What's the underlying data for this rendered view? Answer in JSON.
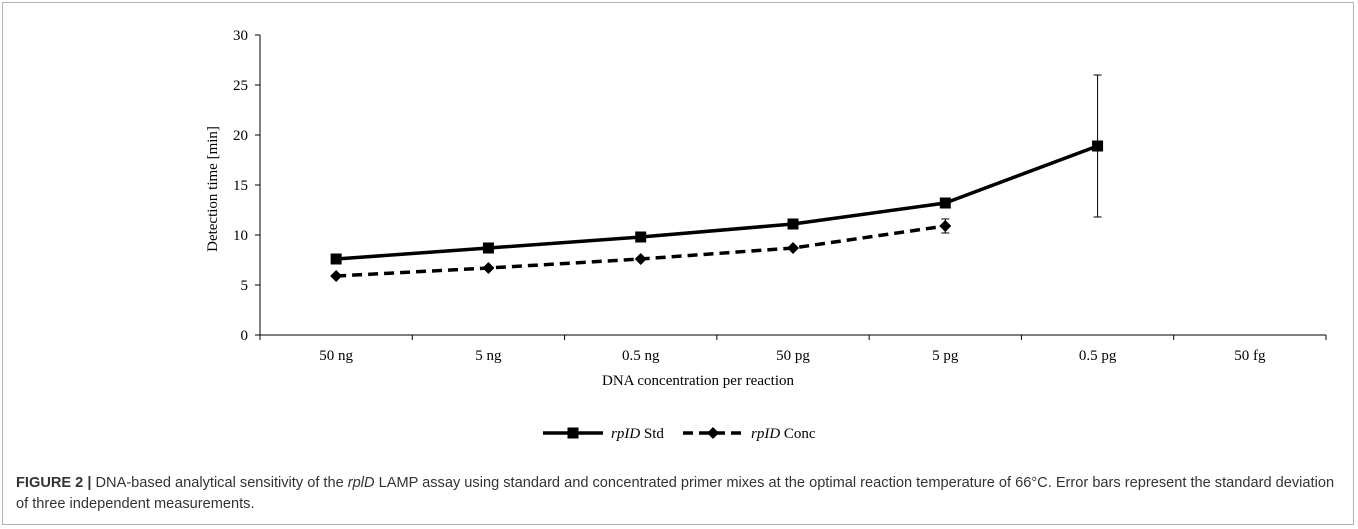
{
  "chart_data": {
    "type": "line",
    "xlabel": "DNA concentration per reaction",
    "ylabel": "Detection time [min]",
    "ylim": [
      0,
      30
    ],
    "yticks": [
      0,
      5,
      10,
      15,
      20,
      25,
      30
    ],
    "categories": [
      "50 ng",
      "5 ng",
      "0.5 ng",
      "50 pg",
      "5 pg",
      "0.5 pg",
      "50 fg"
    ],
    "legend_position": "bottom",
    "grid": false,
    "series": [
      {
        "name_italic": "rpID",
        "name_rest": " Std",
        "marker": "square",
        "line_style": "solid",
        "color": "#000000",
        "values": [
          7.6,
          8.7,
          9.8,
          11.1,
          13.2,
          18.9,
          null
        ],
        "errors": [
          0,
          0,
          0,
          0,
          0,
          7.1,
          null
        ]
      },
      {
        "name_italic": "rpID",
        "name_rest": " Conc",
        "marker": "diamond",
        "line_style": "dashed",
        "color": "#000000",
        "values": [
          5.9,
          6.7,
          7.6,
          8.7,
          10.9,
          null,
          null
        ],
        "errors": [
          0,
          0,
          0,
          0,
          0.7,
          null,
          null
        ]
      }
    ]
  },
  "caption": {
    "figure_label": "FIGURE 2 |",
    "text_before": " DNA-based analytical sensitivity of the ",
    "gene": "rplD",
    "text_after": " LAMP assay using standard and concentrated primer mixes at the optimal reaction temperature of 66°C. Error bars represent the standard deviation of three independent measurements."
  }
}
